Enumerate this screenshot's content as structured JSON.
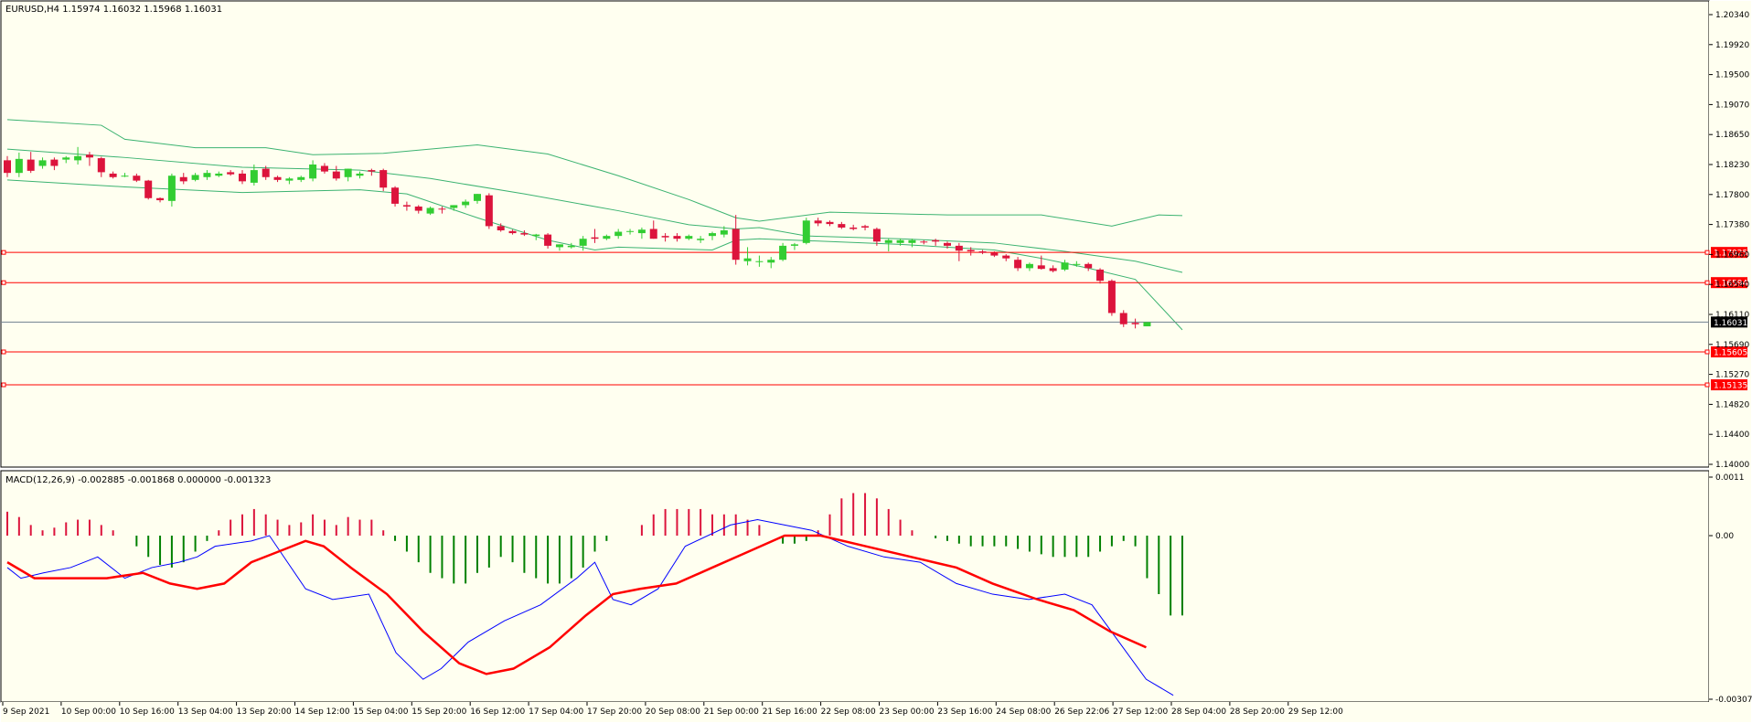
{
  "main_info": "EURUSD,H4  1.15974 1.16032 1.15968 1.16031",
  "macd_info": "MACD(12,26,9) -0.002885 -0.001868 0.000000 -0.001323",
  "colors": {
    "background": "#FFFFF0",
    "bull": "#32CD32",
    "bear": "#DC143C",
    "bands": "#3CB371",
    "hline": "#FF0000",
    "macd_line": "#0000FF",
    "signal_line": "#FF0000",
    "hist_up": "#DC143C",
    "hist_down": "#008000",
    "current_price_line": "#708090"
  },
  "price_axis_labels": [
    "1.20340",
    "1.19920",
    "1.19500",
    "1.19070",
    "1.18650",
    "1.18230",
    "1.17800",
    "1.17380",
    "1.16960",
    "1.16540",
    "1.16110",
    "1.15690",
    "1.15270",
    "1.14820",
    "1.14400",
    "1.14000"
  ],
  "macd_axis_labels": [
    "0.0011",
    "0.00",
    "-0.003075"
  ],
  "time_labels": [
    "9 Sep 2021",
    "10 Sep 00:00",
    "10 Sep 16:00",
    "13 Sep 04:00",
    "13 Sep 20:00",
    "14 Sep 12:00",
    "15 Sep 04:00",
    "15 Sep 20:00",
    "16 Sep 12:00",
    "17 Sep 04:00",
    "17 Sep 20:00",
    "20 Sep 08:00",
    "21 Sep 00:00",
    "21 Sep 16:00",
    "22 Sep 08:00",
    "23 Sep 00:00",
    "23 Sep 16:00",
    "24 Sep 08:00",
    "26 Sep 22:06",
    "27 Sep 12:00",
    "28 Sep 04:00",
    "28 Sep 20:00",
    "29 Sep 12:00"
  ],
  "levels": [
    {
      "price": 1.17025,
      "label": "1.17025",
      "color": "#FF0000"
    },
    {
      "price": 1.16594,
      "label": "1.16594",
      "color": "#FF0000"
    },
    {
      "price": 1.16031,
      "label": "1.16031",
      "color": "#000000"
    },
    {
      "price": 1.15605,
      "label": "1.15605",
      "color": "#FF0000"
    },
    {
      "price": 1.15135,
      "label": "1.15135",
      "color": "#FF0000"
    }
  ],
  "chart_data": {
    "type": "candlestick",
    "symbol": "EURUSD",
    "timeframe": "H4",
    "price_range": [
      1.14,
      1.2055
    ],
    "macd_range": [
      -0.003075,
      0.0011
    ],
    "candles": [
      {
        "o": 1.1834,
        "h": 1.184,
        "l": 1.181,
        "c": 1.1816
      },
      {
        "o": 1.1816,
        "h": 1.1845,
        "l": 1.181,
        "c": 1.1836
      },
      {
        "o": 1.1835,
        "h": 1.1846,
        "l": 1.1816,
        "c": 1.1819
      },
      {
        "o": 1.1826,
        "h": 1.1838,
        "l": 1.1822,
        "c": 1.1834
      },
      {
        "o": 1.1835,
        "h": 1.1838,
        "l": 1.182,
        "c": 1.1826
      },
      {
        "o": 1.1835,
        "h": 1.184,
        "l": 1.183,
        "c": 1.1838
      },
      {
        "o": 1.1834,
        "h": 1.1853,
        "l": 1.1828,
        "c": 1.184
      },
      {
        "o": 1.1842,
        "h": 1.1846,
        "l": 1.1826,
        "c": 1.1838
      },
      {
        "o": 1.1837,
        "h": 1.1839,
        "l": 1.181,
        "c": 1.1817
      },
      {
        "o": 1.1815,
        "h": 1.1818,
        "l": 1.1808,
        "c": 1.181
      },
      {
        "o": 1.1812,
        "h": 1.1816,
        "l": 1.181,
        "c": 1.1812
      },
      {
        "o": 1.1812,
        "h": 1.1815,
        "l": 1.1803,
        "c": 1.1805
      },
      {
        "o": 1.1805,
        "h": 1.1806,
        "l": 1.1778,
        "c": 1.178
      },
      {
        "o": 1.178,
        "h": 1.1781,
        "l": 1.1774,
        "c": 1.1777
      },
      {
        "o": 1.1776,
        "h": 1.1815,
        "l": 1.1768,
        "c": 1.1812
      },
      {
        "o": 1.181,
        "h": 1.1816,
        "l": 1.18,
        "c": 1.1804
      },
      {
        "o": 1.1806,
        "h": 1.1816,
        "l": 1.1804,
        "c": 1.1813
      },
      {
        "o": 1.181,
        "h": 1.182,
        "l": 1.1806,
        "c": 1.1816
      },
      {
        "o": 1.1812,
        "h": 1.1818,
        "l": 1.181,
        "c": 1.1815
      },
      {
        "o": 1.1817,
        "h": 1.182,
        "l": 1.1812,
        "c": 1.1814
      },
      {
        "o": 1.1815,
        "h": 1.182,
        "l": 1.18,
        "c": 1.1804
      },
      {
        "o": 1.1802,
        "h": 1.1828,
        "l": 1.1798,
        "c": 1.182
      },
      {
        "o": 1.1822,
        "h": 1.1826,
        "l": 1.1806,
        "c": 1.181
      },
      {
        "o": 1.181,
        "h": 1.1812,
        "l": 1.1803,
        "c": 1.1806
      },
      {
        "o": 1.1805,
        "h": 1.181,
        "l": 1.18,
        "c": 1.1808
      },
      {
        "o": 1.1806,
        "h": 1.1812,
        "l": 1.1803,
        "c": 1.181
      },
      {
        "o": 1.1808,
        "h": 1.1834,
        "l": 1.1804,
        "c": 1.1828
      },
      {
        "o": 1.1826,
        "h": 1.183,
        "l": 1.1815,
        "c": 1.1818
      },
      {
        "o": 1.1818,
        "h": 1.1826,
        "l": 1.1805,
        "c": 1.1808
      },
      {
        "o": 1.181,
        "h": 1.1822,
        "l": 1.1804,
        "c": 1.1822
      },
      {
        "o": 1.1812,
        "h": 1.1818,
        "l": 1.1808,
        "c": 1.1815
      },
      {
        "o": 1.182,
        "h": 1.1822,
        "l": 1.1812,
        "c": 1.1818
      },
      {
        "o": 1.182,
        "h": 1.1822,
        "l": 1.179,
        "c": 1.1795
      },
      {
        "o": 1.1795,
        "h": 1.1797,
        "l": 1.1768,
        "c": 1.1772
      },
      {
        "o": 1.177,
        "h": 1.1775,
        "l": 1.1762,
        "c": 1.1768
      },
      {
        "o": 1.1768,
        "h": 1.177,
        "l": 1.1758,
        "c": 1.1762
      },
      {
        "o": 1.1758,
        "h": 1.1768,
        "l": 1.1756,
        "c": 1.1766
      },
      {
        "o": 1.1765,
        "h": 1.1768,
        "l": 1.1758,
        "c": 1.1764
      },
      {
        "o": 1.1766,
        "h": 1.177,
        "l": 1.1762,
        "c": 1.177
      },
      {
        "o": 1.177,
        "h": 1.1778,
        "l": 1.1766,
        "c": 1.1775
      },
      {
        "o": 1.1776,
        "h": 1.1786,
        "l": 1.1772,
        "c": 1.1786
      },
      {
        "o": 1.1784,
        "h": 1.1787,
        "l": 1.1736,
        "c": 1.174
      },
      {
        "o": 1.174,
        "h": 1.1744,
        "l": 1.1732,
        "c": 1.1734
      },
      {
        "o": 1.1733,
        "h": 1.1735,
        "l": 1.1728,
        "c": 1.173
      },
      {
        "o": 1.173,
        "h": 1.1734,
        "l": 1.1726,
        "c": 1.1728
      },
      {
        "o": 1.1726,
        "h": 1.1729,
        "l": 1.172,
        "c": 1.1728
      },
      {
        "o": 1.1728,
        "h": 1.173,
        "l": 1.1708,
        "c": 1.1712
      },
      {
        "o": 1.171,
        "h": 1.1714,
        "l": 1.1705,
        "c": 1.1714
      },
      {
        "o": 1.171,
        "h": 1.1716,
        "l": 1.1708,
        "c": 1.1712
      },
      {
        "o": 1.1712,
        "h": 1.1726,
        "l": 1.1705,
        "c": 1.1722
      },
      {
        "o": 1.1724,
        "h": 1.1736,
        "l": 1.1716,
        "c": 1.1722
      },
      {
        "o": 1.1722,
        "h": 1.1728,
        "l": 1.172,
        "c": 1.1726
      },
      {
        "o": 1.1726,
        "h": 1.1736,
        "l": 1.1722,
        "c": 1.1732
      },
      {
        "o": 1.1732,
        "h": 1.1736,
        "l": 1.1728,
        "c": 1.1733
      },
      {
        "o": 1.173,
        "h": 1.1738,
        "l": 1.1722,
        "c": 1.1735
      },
      {
        "o": 1.1736,
        "h": 1.1748,
        "l": 1.1722,
        "c": 1.1722
      },
      {
        "o": 1.1726,
        "h": 1.173,
        "l": 1.1718,
        "c": 1.1724
      },
      {
        "o": 1.1726,
        "h": 1.173,
        "l": 1.1718,
        "c": 1.1722
      },
      {
        "o": 1.1722,
        "h": 1.1728,
        "l": 1.172,
        "c": 1.1726
      },
      {
        "o": 1.172,
        "h": 1.1726,
        "l": 1.1716,
        "c": 1.1722
      },
      {
        "o": 1.1726,
        "h": 1.1732,
        "l": 1.172,
        "c": 1.173
      },
      {
        "o": 1.1728,
        "h": 1.174,
        "l": 1.1724,
        "c": 1.1734
      },
      {
        "o": 1.1736,
        "h": 1.1756,
        "l": 1.1685,
        "c": 1.1692
      },
      {
        "o": 1.169,
        "h": 1.171,
        "l": 1.1684,
        "c": 1.1694
      },
      {
        "o": 1.169,
        "h": 1.1698,
        "l": 1.1682,
        "c": 1.169
      },
      {
        "o": 1.1688,
        "h": 1.1696,
        "l": 1.168,
        "c": 1.1692
      },
      {
        "o": 1.1692,
        "h": 1.1716,
        "l": 1.169,
        "c": 1.1712
      },
      {
        "o": 1.1712,
        "h": 1.1716,
        "l": 1.1706,
        "c": 1.1714
      },
      {
        "o": 1.1716,
        "h": 1.1752,
        "l": 1.1714,
        "c": 1.1748
      },
      {
        "o": 1.1748,
        "h": 1.1752,
        "l": 1.174,
        "c": 1.1744
      },
      {
        "o": 1.1746,
        "h": 1.1748,
        "l": 1.174,
        "c": 1.1743
      },
      {
        "o": 1.1743,
        "h": 1.1746,
        "l": 1.1736,
        "c": 1.1738
      },
      {
        "o": 1.1738,
        "h": 1.1742,
        "l": 1.1734,
        "c": 1.1736
      },
      {
        "o": 1.174,
        "h": 1.1742,
        "l": 1.1734,
        "c": 1.1738
      },
      {
        "o": 1.1736,
        "h": 1.1738,
        "l": 1.1712,
        "c": 1.1718
      },
      {
        "o": 1.1716,
        "h": 1.1722,
        "l": 1.1704,
        "c": 1.172
      },
      {
        "o": 1.1716,
        "h": 1.1722,
        "l": 1.1712,
        "c": 1.172
      },
      {
        "o": 1.1716,
        "h": 1.1722,
        "l": 1.171,
        "c": 1.172
      },
      {
        "o": 1.1718,
        "h": 1.172,
        "l": 1.1714,
        "c": 1.1717
      },
      {
        "o": 1.172,
        "h": 1.1722,
        "l": 1.1712,
        "c": 1.1718
      },
      {
        "o": 1.1716,
        "h": 1.1718,
        "l": 1.1708,
        "c": 1.1712
      },
      {
        "o": 1.1712,
        "h": 1.1716,
        "l": 1.169,
        "c": 1.1705
      },
      {
        "o": 1.1706,
        "h": 1.171,
        "l": 1.1698,
        "c": 1.1704
      },
      {
        "o": 1.1704,
        "h": 1.1706,
        "l": 1.17,
        "c": 1.1702
      },
      {
        "o": 1.1702,
        "h": 1.1704,
        "l": 1.1696,
        "c": 1.1698
      },
      {
        "o": 1.1698,
        "h": 1.17,
        "l": 1.169,
        "c": 1.1694
      },
      {
        "o": 1.1692,
        "h": 1.1696,
        "l": 1.1676,
        "c": 1.168
      },
      {
        "o": 1.168,
        "h": 1.1688,
        "l": 1.1676,
        "c": 1.1686
      },
      {
        "o": 1.1684,
        "h": 1.1698,
        "l": 1.1678,
        "c": 1.1679
      },
      {
        "o": 1.168,
        "h": 1.1684,
        "l": 1.1674,
        "c": 1.1676
      },
      {
        "o": 1.1678,
        "h": 1.1692,
        "l": 1.1676,
        "c": 1.1688
      },
      {
        "o": 1.1686,
        "h": 1.169,
        "l": 1.1682,
        "c": 1.1686
      },
      {
        "o": 1.1686,
        "h": 1.1688,
        "l": 1.1676,
        "c": 1.168
      },
      {
        "o": 1.1678,
        "h": 1.168,
        "l": 1.1658,
        "c": 1.1662
      },
      {
        "o": 1.1662,
        "h": 1.1664,
        "l": 1.1612,
        "c": 1.1616
      },
      {
        "o": 1.1616,
        "h": 1.162,
        "l": 1.1596,
        "c": 1.16
      },
      {
        "o": 1.1602,
        "h": 1.1608,
        "l": 1.1594,
        "c": 1.16
      },
      {
        "o": 1.1597,
        "h": 1.1603,
        "l": 1.1597,
        "c": 1.1603
      }
    ],
    "bands": {
      "upper": [
        [
          0,
          1.1892
        ],
        [
          8,
          1.1884
        ],
        [
          10,
          1.1864
        ],
        [
          16,
          1.1852
        ],
        [
          22,
          1.1852
        ],
        [
          26,
          1.1842
        ],
        [
          32,
          1.1844
        ],
        [
          40,
          1.1856
        ],
        [
          46,
          1.1843
        ],
        [
          52,
          1.1812
        ],
        [
          58,
          1.1778
        ],
        [
          62,
          1.1752
        ],
        [
          64,
          1.1747
        ],
        [
          70,
          1.176
        ],
        [
          80,
          1.1756
        ],
        [
          88,
          1.1756
        ],
        [
          94,
          1.174
        ],
        [
          98,
          1.1756
        ],
        [
          100,
          1.1755
        ]
      ],
      "middle": [
        [
          0,
          1.185
        ],
        [
          10,
          1.1838
        ],
        [
          20,
          1.1824
        ],
        [
          30,
          1.182
        ],
        [
          36,
          1.1808
        ],
        [
          44,
          1.1786
        ],
        [
          52,
          1.1762
        ],
        [
          58,
          1.1742
        ],
        [
          62,
          1.1736
        ],
        [
          64,
          1.1738
        ],
        [
          68,
          1.1726
        ],
        [
          76,
          1.1722
        ],
        [
          84,
          1.1716
        ],
        [
          90,
          1.1704
        ],
        [
          96,
          1.169
        ],
        [
          100,
          1.1674
        ]
      ],
      "lower": [
        [
          0,
          1.1806
        ],
        [
          10,
          1.1796
        ],
        [
          20,
          1.1788
        ],
        [
          30,
          1.1792
        ],
        [
          34,
          1.1786
        ],
        [
          40,
          1.1752
        ],
        [
          46,
          1.172
        ],
        [
          50,
          1.1706
        ],
        [
          52,
          1.171
        ],
        [
          60,
          1.1706
        ],
        [
          62,
          1.172
        ],
        [
          64,
          1.1722
        ],
        [
          76,
          1.1714
        ],
        [
          84,
          1.1706
        ],
        [
          88,
          1.1694
        ],
        [
          92,
          1.168
        ],
        [
          96,
          1.1664
        ],
        [
          100,
          1.1592
        ]
      ]
    },
    "macd_histogram": [
      0.00045,
      0.00035,
      0.0002,
      0.0001,
      0.00015,
      0.00025,
      0.0003,
      0.0003,
      0.0002,
      0.0001,
      0.0,
      -0.0002,
      -0.0004,
      -0.00055,
      -0.0006,
      -0.0005,
      -0.0003,
      -0.0001,
      0.0001,
      0.0003,
      0.0004,
      0.0005,
      0.0004,
      0.0003,
      0.0002,
      0.00025,
      0.0004,
      0.0003,
      0.0002,
      0.00035,
      0.0003,
      0.0003,
      0.0001,
      -0.0001,
      -0.0003,
      -0.0005,
      -0.0007,
      -0.0008,
      -0.0009,
      -0.0009,
      -0.0007,
      -0.0006,
      -0.0004,
      -0.0005,
      -0.0007,
      -0.0008,
      -0.0009,
      -0.0009,
      -0.0008,
      -0.0006,
      -0.0003,
      -0.0001,
      0.0,
      0.0,
      0.0002,
      0.0004,
      0.0005,
      0.0005,
      0.0005,
      0.0005,
      0.0004,
      0.0004,
      0.0004,
      0.0003,
      0.0002,
      0.0,
      -0.00015,
      -0.00015,
      -0.0001,
      0.0001,
      0.0004,
      0.0007,
      0.0008,
      0.0008,
      0.0007,
      0.0005,
      0.0003,
      0.0001,
      0.0,
      -5e-05,
      -0.0001,
      -0.00015,
      -0.0002,
      -0.0002,
      -0.0002,
      -0.0002,
      -0.00025,
      -0.0003,
      -0.00035,
      -0.0004,
      -0.0004,
      -0.0004,
      -0.0004,
      -0.0003,
      -0.0002,
      -0.0001,
      -0.0002,
      -0.0008,
      -0.0011,
      -0.0015,
      -0.0015
    ],
    "macd_line": [
      [
        0,
        -0.0006
      ],
      [
        3,
        -0.0008
      ],
      [
        8,
        -0.0007
      ],
      [
        14,
        -0.0006
      ],
      [
        20,
        -0.0004
      ],
      [
        26,
        -0.0008
      ],
      [
        32,
        -0.0006
      ],
      [
        38,
        -0.0005
      ],
      [
        42,
        -0.0004
      ],
      [
        46,
        -0.0002
      ],
      [
        54,
        -0.0001
      ],
      [
        58,
        0.0
      ],
      [
        66,
        -0.001
      ],
      [
        72,
        -0.0012
      ],
      [
        80,
        -0.0011
      ],
      [
        86,
        -0.0022
      ],
      [
        92,
        -0.0027
      ],
      [
        96,
        -0.0025
      ],
      [
        102,
        -0.002
      ],
      [
        110,
        -0.0016
      ],
      [
        118,
        -0.0013
      ],
      [
        126,
        -0.0008
      ],
      [
        130,
        -0.0005
      ],
      [
        134,
        -0.0012
      ],
      [
        138,
        -0.0013
      ],
      [
        144,
        -0.001
      ],
      [
        150,
        -0.0002
      ],
      [
        160,
        0.0002
      ],
      [
        166,
        0.0003
      ],
      [
        172,
        0.0002
      ],
      [
        178,
        0.0001
      ],
      [
        186,
        -0.0002
      ],
      [
        194,
        -0.0004
      ],
      [
        202,
        -0.0005
      ],
      [
        210,
        -0.0009
      ],
      [
        218,
        -0.0011
      ],
      [
        226,
        -0.0012
      ],
      [
        234,
        -0.0011
      ],
      [
        240,
        -0.0013
      ],
      [
        246,
        -0.002
      ],
      [
        252,
        -0.0027
      ],
      [
        258,
        -0.003
      ]
    ],
    "signal_line": [
      [
        0,
        -0.0005
      ],
      [
        6,
        -0.0008
      ],
      [
        14,
        -0.0008
      ],
      [
        22,
        -0.0008
      ],
      [
        30,
        -0.0007
      ],
      [
        36,
        -0.0009
      ],
      [
        42,
        -0.001
      ],
      [
        48,
        -0.0009
      ],
      [
        54,
        -0.0005
      ],
      [
        60,
        -0.0003
      ],
      [
        66,
        -0.0001
      ],
      [
        70,
        -0.0002
      ],
      [
        76,
        -0.0006
      ],
      [
        84,
        -0.0011
      ],
      [
        92,
        -0.0018
      ],
      [
        100,
        -0.0024
      ],
      [
        106,
        -0.0026
      ],
      [
        112,
        -0.0025
      ],
      [
        120,
        -0.0021
      ],
      [
        128,
        -0.0015
      ],
      [
        134,
        -0.0011
      ],
      [
        140,
        -0.001
      ],
      [
        148,
        -0.0009
      ],
      [
        156,
        -0.0006
      ],
      [
        164,
        -0.0003
      ],
      [
        172,
        0.0
      ],
      [
        180,
        0.0
      ],
      [
        190,
        -0.0002
      ],
      [
        200,
        -0.0004
      ],
      [
        210,
        -0.0006
      ],
      [
        218,
        -0.0009
      ],
      [
        228,
        -0.0012
      ],
      [
        236,
        -0.0014
      ],
      [
        244,
        -0.0018
      ],
      [
        252,
        -0.0021
      ]
    ]
  }
}
